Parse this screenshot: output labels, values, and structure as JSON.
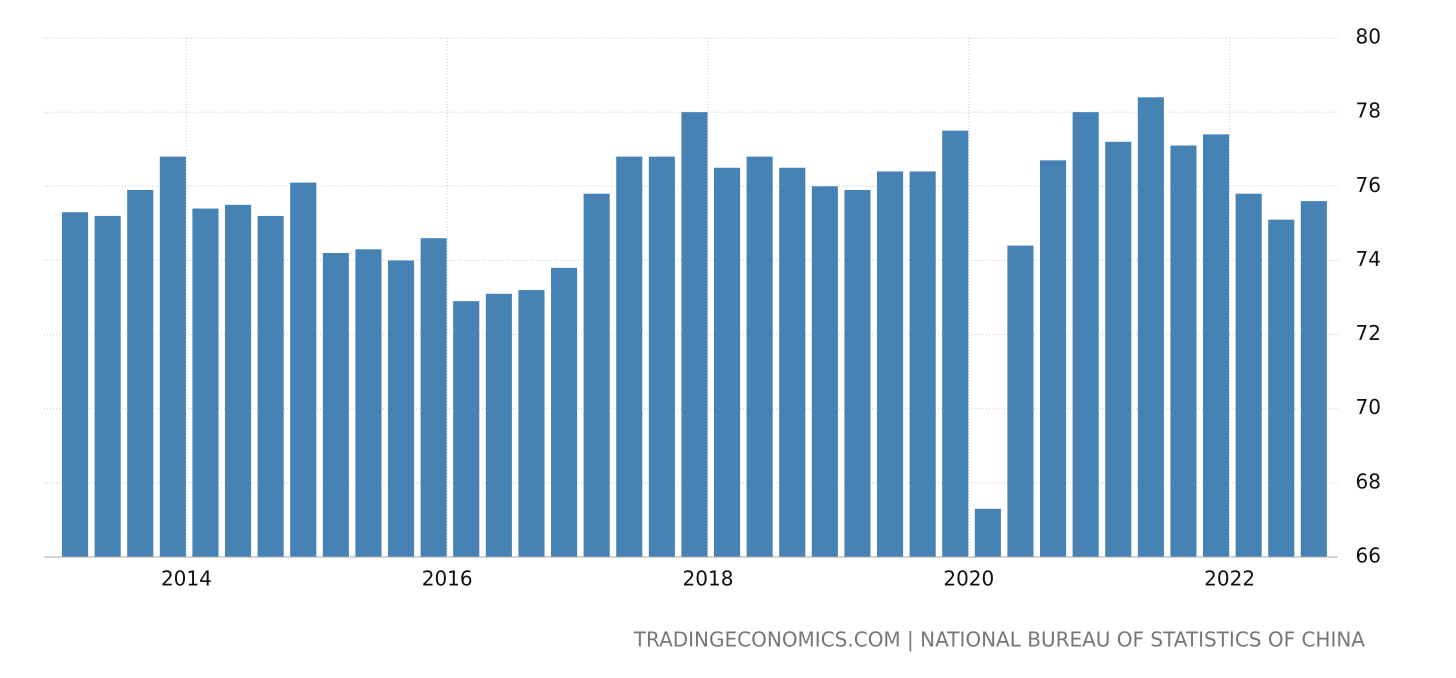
{
  "chart_data": {
    "type": "bar",
    "categories": [
      null,
      null,
      null,
      "2014",
      null,
      null,
      null,
      null,
      null,
      null,
      null,
      "2016",
      null,
      null,
      null,
      null,
      null,
      null,
      null,
      "2018",
      null,
      null,
      null,
      null,
      null,
      null,
      null,
      "2020",
      null,
      null,
      null,
      null,
      null,
      null,
      null,
      "2022",
      null,
      null,
      null
    ],
    "values": [
      75.3,
      75.2,
      75.9,
      76.8,
      75.4,
      75.5,
      75.2,
      76.1,
      74.2,
      74.3,
      74.0,
      74.6,
      72.9,
      73.1,
      73.2,
      73.8,
      75.8,
      76.8,
      76.8,
      78.0,
      76.5,
      76.8,
      76.5,
      76.0,
      75.9,
      76.4,
      76.4,
      77.5,
      67.3,
      74.4,
      76.7,
      78.0,
      77.2,
      78.4,
      77.1,
      77.4,
      75.8,
      75.1,
      75.6
    ],
    "color": "#4682b4",
    "ylim": [
      66,
      80
    ],
    "yticks": [
      66,
      68,
      70,
      72,
      74,
      76,
      78,
      80
    ],
    "grid": true,
    "source": "TRADINGECONOMICS.COM | NATIONAL BUREAU OF STATISTICS OF CHINA"
  }
}
